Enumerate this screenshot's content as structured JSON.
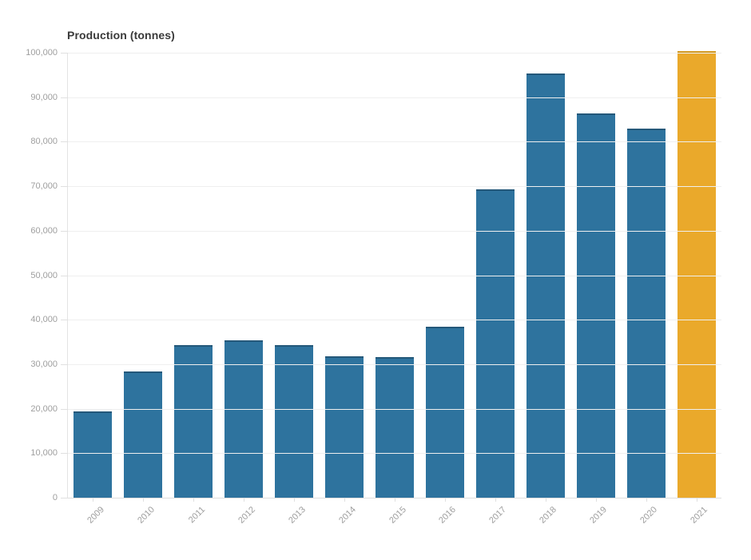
{
  "chart_data": {
    "type": "bar",
    "title": "Production (tonnes)",
    "xlabel": "",
    "ylabel": "Production (tonnes)",
    "categories": [
      "2009",
      "2010",
      "2011",
      "2012",
      "2013",
      "2014",
      "2015",
      "2016",
      "2017",
      "2018",
      "2019",
      "2020",
      "2021"
    ],
    "values": [
      19000,
      28000,
      34000,
      35000,
      34000,
      31500,
      31300,
      38000,
      69000,
      95000,
      86000,
      82500,
      100000
    ],
    "ylim": [
      0,
      100000
    ],
    "y_tick_step": 10000,
    "y_tick_labels": [
      "0",
      "10,000",
      "20,000",
      "30,000",
      "40,000",
      "50,000",
      "60,000",
      "70,000",
      "80,000",
      "90,000",
      "100,000"
    ],
    "highlight_category": "2021",
    "grid": true,
    "legend_position": "none",
    "colors": {
      "bar": "#2e739e",
      "bar_edge": "#24587a",
      "highlight": "#eaa92b",
      "highlight_edge": "#d2981f",
      "grid": "#efefef",
      "baseline": "#dedede",
      "axis": "#e4e4e4",
      "tick_label": "#9e9e9e",
      "title": "#3a3a3a"
    }
  }
}
